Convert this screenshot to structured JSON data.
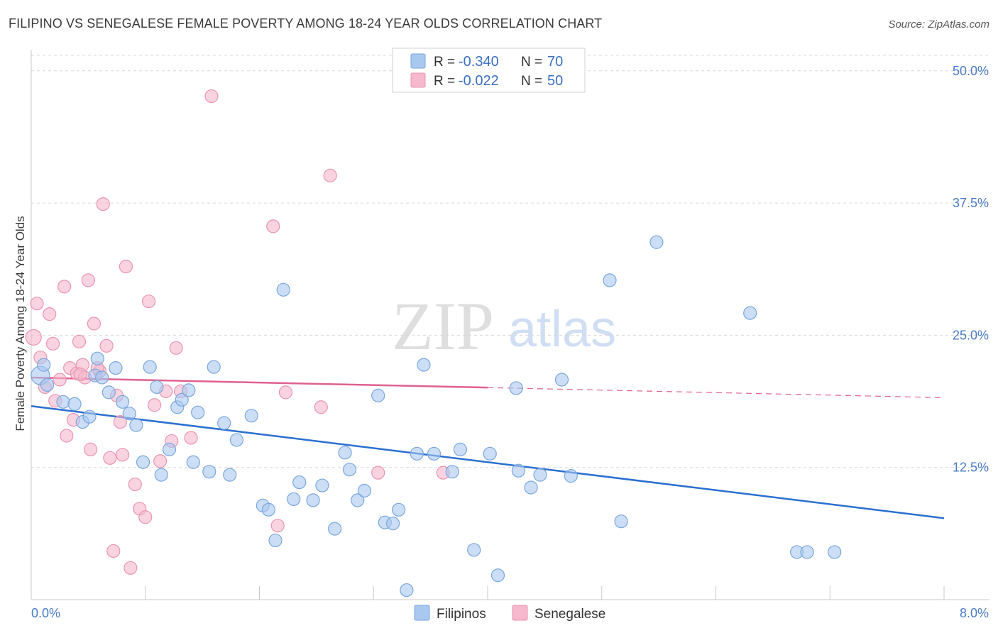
{
  "title": "FILIPINO VS SENEGALESE FEMALE POVERTY AMONG 18-24 YEAR OLDS CORRELATION CHART",
  "source": "Source: ZipAtlas.com",
  "watermark": {
    "zip": "ZIP",
    "atlas": "atlas"
  },
  "colors": {
    "filipino_fill": "#a8c8f0",
    "filipino_stroke": "#7aa6dc",
    "filipino_line": "#2a6fd0",
    "senegalese_fill": "#f5b8cc",
    "senegalese_stroke": "#ea94b0",
    "senegalese_line": "#e06090",
    "axis_text": "#4a7cc4",
    "grid": "#d8d8d8"
  },
  "legend": {
    "rows": [
      {
        "r_label": "R =",
        "r_value": "-0.340",
        "n_label": "N =",
        "n_value": "70"
      },
      {
        "r_label": "R =",
        "r_value": "-0.022",
        "n_label": "N =",
        "n_value": "50"
      }
    ]
  },
  "bottom_legend": [
    "Filipinos",
    "Senegalese"
  ],
  "chart_data": {
    "type": "scatter",
    "title": "FILIPINO VS SENEGALESE FEMALE POVERTY AMONG 18-24 YEAR OLDS CORRELATION CHART",
    "xlabel": "",
    "ylabel": "Female Poverty Among 18-24 Year Olds",
    "xlim": [
      0,
      8
    ],
    "ylim": [
      0,
      52
    ],
    "x_tick_labels": [
      "0.0%",
      "8.0%"
    ],
    "y_ticks": [
      12.5,
      25.0,
      37.5,
      50.0
    ],
    "y_tick_labels": [
      "12.5%",
      "25.0%",
      "37.5%",
      "50.0%"
    ],
    "grid": "horizontal dashed",
    "legend_position": "top-center",
    "series": [
      {
        "name": "Filipinos",
        "r": -0.34,
        "n": 70,
        "trend": {
          "x": [
            0.0,
            8.0
          ],
          "y": [
            18.3,
            7.7
          ],
          "dashed_from": null
        },
        "points": [
          [
            0.08,
            21.2
          ],
          [
            0.11,
            22.2
          ],
          [
            0.14,
            20.3
          ],
          [
            0.28,
            18.7
          ],
          [
            0.38,
            18.5
          ],
          [
            0.45,
            16.8
          ],
          [
            0.51,
            17.3
          ],
          [
            0.56,
            21.2
          ],
          [
            0.58,
            22.8
          ],
          [
            0.62,
            21.0
          ],
          [
            0.68,
            19.6
          ],
          [
            0.74,
            21.9
          ],
          [
            0.8,
            18.7
          ],
          [
            0.86,
            17.6
          ],
          [
            0.92,
            16.5
          ],
          [
            0.98,
            13.0
          ],
          [
            1.04,
            22.0
          ],
          [
            1.1,
            20.1
          ],
          [
            1.14,
            11.8
          ],
          [
            1.21,
            14.2
          ],
          [
            1.28,
            18.2
          ],
          [
            1.32,
            18.9
          ],
          [
            1.38,
            19.8
          ],
          [
            1.42,
            13.0
          ],
          [
            1.46,
            17.7
          ],
          [
            1.56,
            12.1
          ],
          [
            1.6,
            22.0
          ],
          [
            1.69,
            16.7
          ],
          [
            1.74,
            11.8
          ],
          [
            1.8,
            15.1
          ],
          [
            1.93,
            17.4
          ],
          [
            2.03,
            8.9
          ],
          [
            2.08,
            8.5
          ],
          [
            2.14,
            5.6
          ],
          [
            2.21,
            29.3
          ],
          [
            2.3,
            9.5
          ],
          [
            2.35,
            11.1
          ],
          [
            2.47,
            9.4
          ],
          [
            2.55,
            10.8
          ],
          [
            2.66,
            6.7
          ],
          [
            2.75,
            13.9
          ],
          [
            2.79,
            12.3
          ],
          [
            2.86,
            9.4
          ],
          [
            2.92,
            10.3
          ],
          [
            3.04,
            19.3
          ],
          [
            3.1,
            7.3
          ],
          [
            3.17,
            7.2
          ],
          [
            3.22,
            8.5
          ],
          [
            3.29,
            0.9
          ],
          [
            3.38,
            13.8
          ],
          [
            3.44,
            22.2
          ],
          [
            3.53,
            13.8
          ],
          [
            3.69,
            12.1
          ],
          [
            3.76,
            14.2
          ],
          [
            3.88,
            4.7
          ],
          [
            4.02,
            13.8
          ],
          [
            4.09,
            2.3
          ],
          [
            4.25,
            20.0
          ],
          [
            4.27,
            12.2
          ],
          [
            4.38,
            10.6
          ],
          [
            4.46,
            11.8
          ],
          [
            4.65,
            20.8
          ],
          [
            4.73,
            11.7
          ],
          [
            5.07,
            30.2
          ],
          [
            5.17,
            7.4
          ],
          [
            5.48,
            33.8
          ],
          [
            6.3,
            27.1
          ],
          [
            6.71,
            4.5
          ],
          [
            6.8,
            4.5
          ],
          [
            7.04,
            4.5
          ]
        ]
      },
      {
        "name": "Senegalese",
        "r": -0.022,
        "n": 50,
        "trend": {
          "x": [
            0.0,
            8.0
          ],
          "y": [
            21.0,
            19.1
          ],
          "dashed_from": 4.0
        },
        "points": [
          [
            0.02,
            24.8
          ],
          [
            0.05,
            28.0
          ],
          [
            0.08,
            22.9
          ],
          [
            0.12,
            20.1
          ],
          [
            0.16,
            27.0
          ],
          [
            0.19,
            24.2
          ],
          [
            0.21,
            18.8
          ],
          [
            0.25,
            20.8
          ],
          [
            0.29,
            29.6
          ],
          [
            0.31,
            15.5
          ],
          [
            0.34,
            21.9
          ],
          [
            0.37,
            17.0
          ],
          [
            0.4,
            21.4
          ],
          [
            0.42,
            24.4
          ],
          [
            0.45,
            22.2
          ],
          [
            0.47,
            21.0
          ],
          [
            0.5,
            30.2
          ],
          [
            0.52,
            14.2
          ],
          [
            0.55,
            26.1
          ],
          [
            0.6,
            21.6
          ],
          [
            0.63,
            37.4
          ],
          [
            0.66,
            24.0
          ],
          [
            0.69,
            13.4
          ],
          [
            0.72,
            4.6
          ],
          [
            0.75,
            19.3
          ],
          [
            0.78,
            16.8
          ],
          [
            0.8,
            13.7
          ],
          [
            0.83,
            31.5
          ],
          [
            0.87,
            3.0
          ],
          [
            0.91,
            10.9
          ],
          [
            0.95,
            8.6
          ],
          [
            1.0,
            7.8
          ],
          [
            1.03,
            28.2
          ],
          [
            1.08,
            18.4
          ],
          [
            1.13,
            13.1
          ],
          [
            1.18,
            19.7
          ],
          [
            1.23,
            15.0
          ],
          [
            1.27,
            23.8
          ],
          [
            1.31,
            19.7
          ],
          [
            1.4,
            15.3
          ],
          [
            1.58,
            47.6
          ],
          [
            2.12,
            35.3
          ],
          [
            2.16,
            7.0
          ],
          [
            2.23,
            19.6
          ],
          [
            2.54,
            18.2
          ],
          [
            2.62,
            40.1
          ],
          [
            3.04,
            12.0
          ],
          [
            3.61,
            12.0
          ],
          [
            0.43,
            21.3
          ],
          [
            0.58,
            21.9
          ]
        ]
      }
    ]
  }
}
